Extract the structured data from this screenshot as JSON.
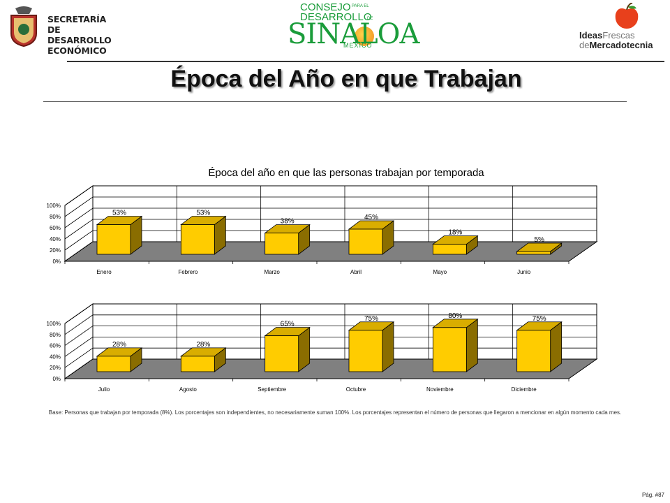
{
  "header": {
    "left_logo": [
      "SECRETARÍA",
      "DE DESARROLLO",
      "ECONÓMICO"
    ],
    "center_logo": {
      "line1": "CONSEJO",
      "small1": "PARA EL",
      "line2": "DESARROLLO",
      "small2": "DE",
      "line3": "SINALOA",
      "line4": "MEXICO"
    },
    "right_logo": {
      "ideas": "Ideas",
      "frescas": "Frescas",
      "de": "de",
      "mercadotecnia": "Mercadotecnia"
    }
  },
  "page_title": "Época del Año en que Trabajan",
  "chart_data": {
    "type": "bar",
    "title": "Época del año en que las personas trabajan por temporada",
    "yticks": [
      "100%",
      "80%",
      "60%",
      "40%",
      "20%",
      "0%"
    ],
    "ylim": [
      0,
      100
    ],
    "grid": true,
    "panels": [
      {
        "categories": [
          "Enero",
          "Febrero",
          "Marzo",
          "Abril",
          "Mayo",
          "Junio"
        ],
        "values": [
          53,
          53,
          38,
          45,
          18,
          5
        ],
        "labels": [
          "53%",
          "53%",
          "38%",
          "45%",
          "18%",
          "5%"
        ]
      },
      {
        "categories": [
          "Julio",
          "Agosto",
          "Septiembre",
          "Octubre",
          "Noviembre",
          "Diciembre"
        ],
        "values": [
          28,
          28,
          65,
          75,
          80,
          75
        ],
        "labels": [
          "28%",
          "28%",
          "65%",
          "75%",
          "80%",
          "75%"
        ]
      }
    ],
    "colors": {
      "bar_front": "#ffcc00",
      "bar_side": "#8a6d00",
      "bar_top": "#d9ad00",
      "floor": "#808080"
    }
  },
  "footnote": "Base: Personas que trabajan por temporada (8%). Los porcentajes son independientes, no necesariamente suman 100%. Los porcentajes representan el número de personas que llegaron a mencionar en algún momento cada mes.",
  "page_number": "Pág. #87"
}
